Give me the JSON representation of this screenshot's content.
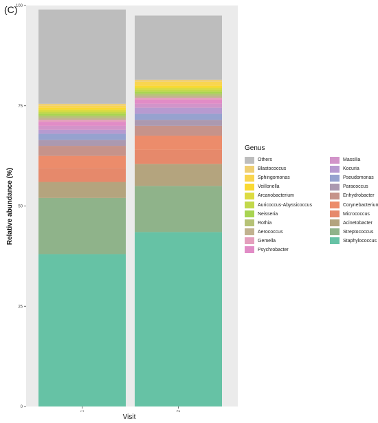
{
  "panel_label": "(C)",
  "chart_data": {
    "type": "bar",
    "stacked": true,
    "categories": [
      "1",
      "2"
    ],
    "xlabel": "Visit",
    "ylabel": "Relative abundance (%)",
    "ylim": [
      0,
      100
    ],
    "yticks": [
      0,
      25,
      50,
      75,
      100
    ],
    "legend": {
      "title": "Genus",
      "placement": "right"
    },
    "series": [
      {
        "name": "Staphylococcus",
        "color": "#66c2a5",
        "values": [
          38,
          43.5
        ]
      },
      {
        "name": "Streptococcus",
        "color": "#8fb38a",
        "values": [
          14,
          11.5
        ]
      },
      {
        "name": "Acinetobacter",
        "color": "#b4a47e",
        "values": [
          4,
          5.5
        ]
      },
      {
        "name": "Micrococcus",
        "color": "#e6896b",
        "values": [
          3.5,
          3.5
        ]
      },
      {
        "name": "Corynebacterium",
        "color": "#ec8c6b",
        "values": [
          3,
          3.5
        ]
      },
      {
        "name": "Enhydrobacter",
        "color": "#c6938a",
        "values": [
          2.5,
          2.5
        ]
      },
      {
        "name": "Paracoccus",
        "color": "#ab99b0",
        "values": [
          1.5,
          1.5
        ]
      },
      {
        "name": "Pseudomonas",
        "color": "#96a2cf",
        "values": [
          1.5,
          1.5
        ]
      },
      {
        "name": "Kocuria",
        "color": "#b79ad0",
        "values": [
          1,
          1.5
        ]
      },
      {
        "name": "Massilia",
        "color": "#d294c9",
        "values": [
          1,
          1
        ]
      },
      {
        "name": "Psychrobacter",
        "color": "#e18cc6",
        "values": [
          1,
          1
        ]
      },
      {
        "name": "Gemella",
        "color": "#e49fbd",
        "values": [
          0.5,
          0.5
        ]
      },
      {
        "name": "Aerococcus",
        "color": "#c1b28f",
        "values": [
          0.5,
          0.5
        ]
      },
      {
        "name": "Rothia",
        "color": "#b6c276",
        "values": [
          0.5,
          0.5
        ]
      },
      {
        "name": "Neisseria",
        "color": "#a8d451",
        "values": [
          0.5,
          0.5
        ]
      },
      {
        "name": "Auricoccus-Abyssicoccus",
        "color": "#c2d84b",
        "values": [
          0.5,
          0.5
        ]
      },
      {
        "name": "Arcanobacterium",
        "color": "#dcdb41",
        "values": [
          0.5,
          0.5
        ]
      },
      {
        "name": "Veillonella",
        "color": "#fad931",
        "values": [
          0.5,
          0.5
        ]
      },
      {
        "name": "Sphingomonas",
        "color": "#f9d54f",
        "values": [
          0.5,
          1
        ]
      },
      {
        "name": "Blastococcus",
        "color": "#efcf73",
        "values": [
          0.5,
          0.5
        ]
      },
      {
        "name": "Others",
        "color": "#bdbdbd",
        "values": [
          23.5,
          16
        ]
      }
    ],
    "legend_columns": [
      [
        "Others",
        "Blastococcus",
        "Sphingomonas",
        "Veillonella",
        "Arcanobacterium",
        "Auricoccus-Abyssicoccus",
        "Neisseria",
        "Rothia",
        "Aerococcus",
        "Gemella",
        "Psychrobacter"
      ],
      [
        "Massilia",
        "Kocuria",
        "Pseudomonas",
        "Paracoccus",
        "Enhydrobacter",
        "Corynebacterium",
        "Micrococcus",
        "Acinetobacter",
        "Streptococcus",
        "Staphylococcus"
      ]
    ]
  }
}
